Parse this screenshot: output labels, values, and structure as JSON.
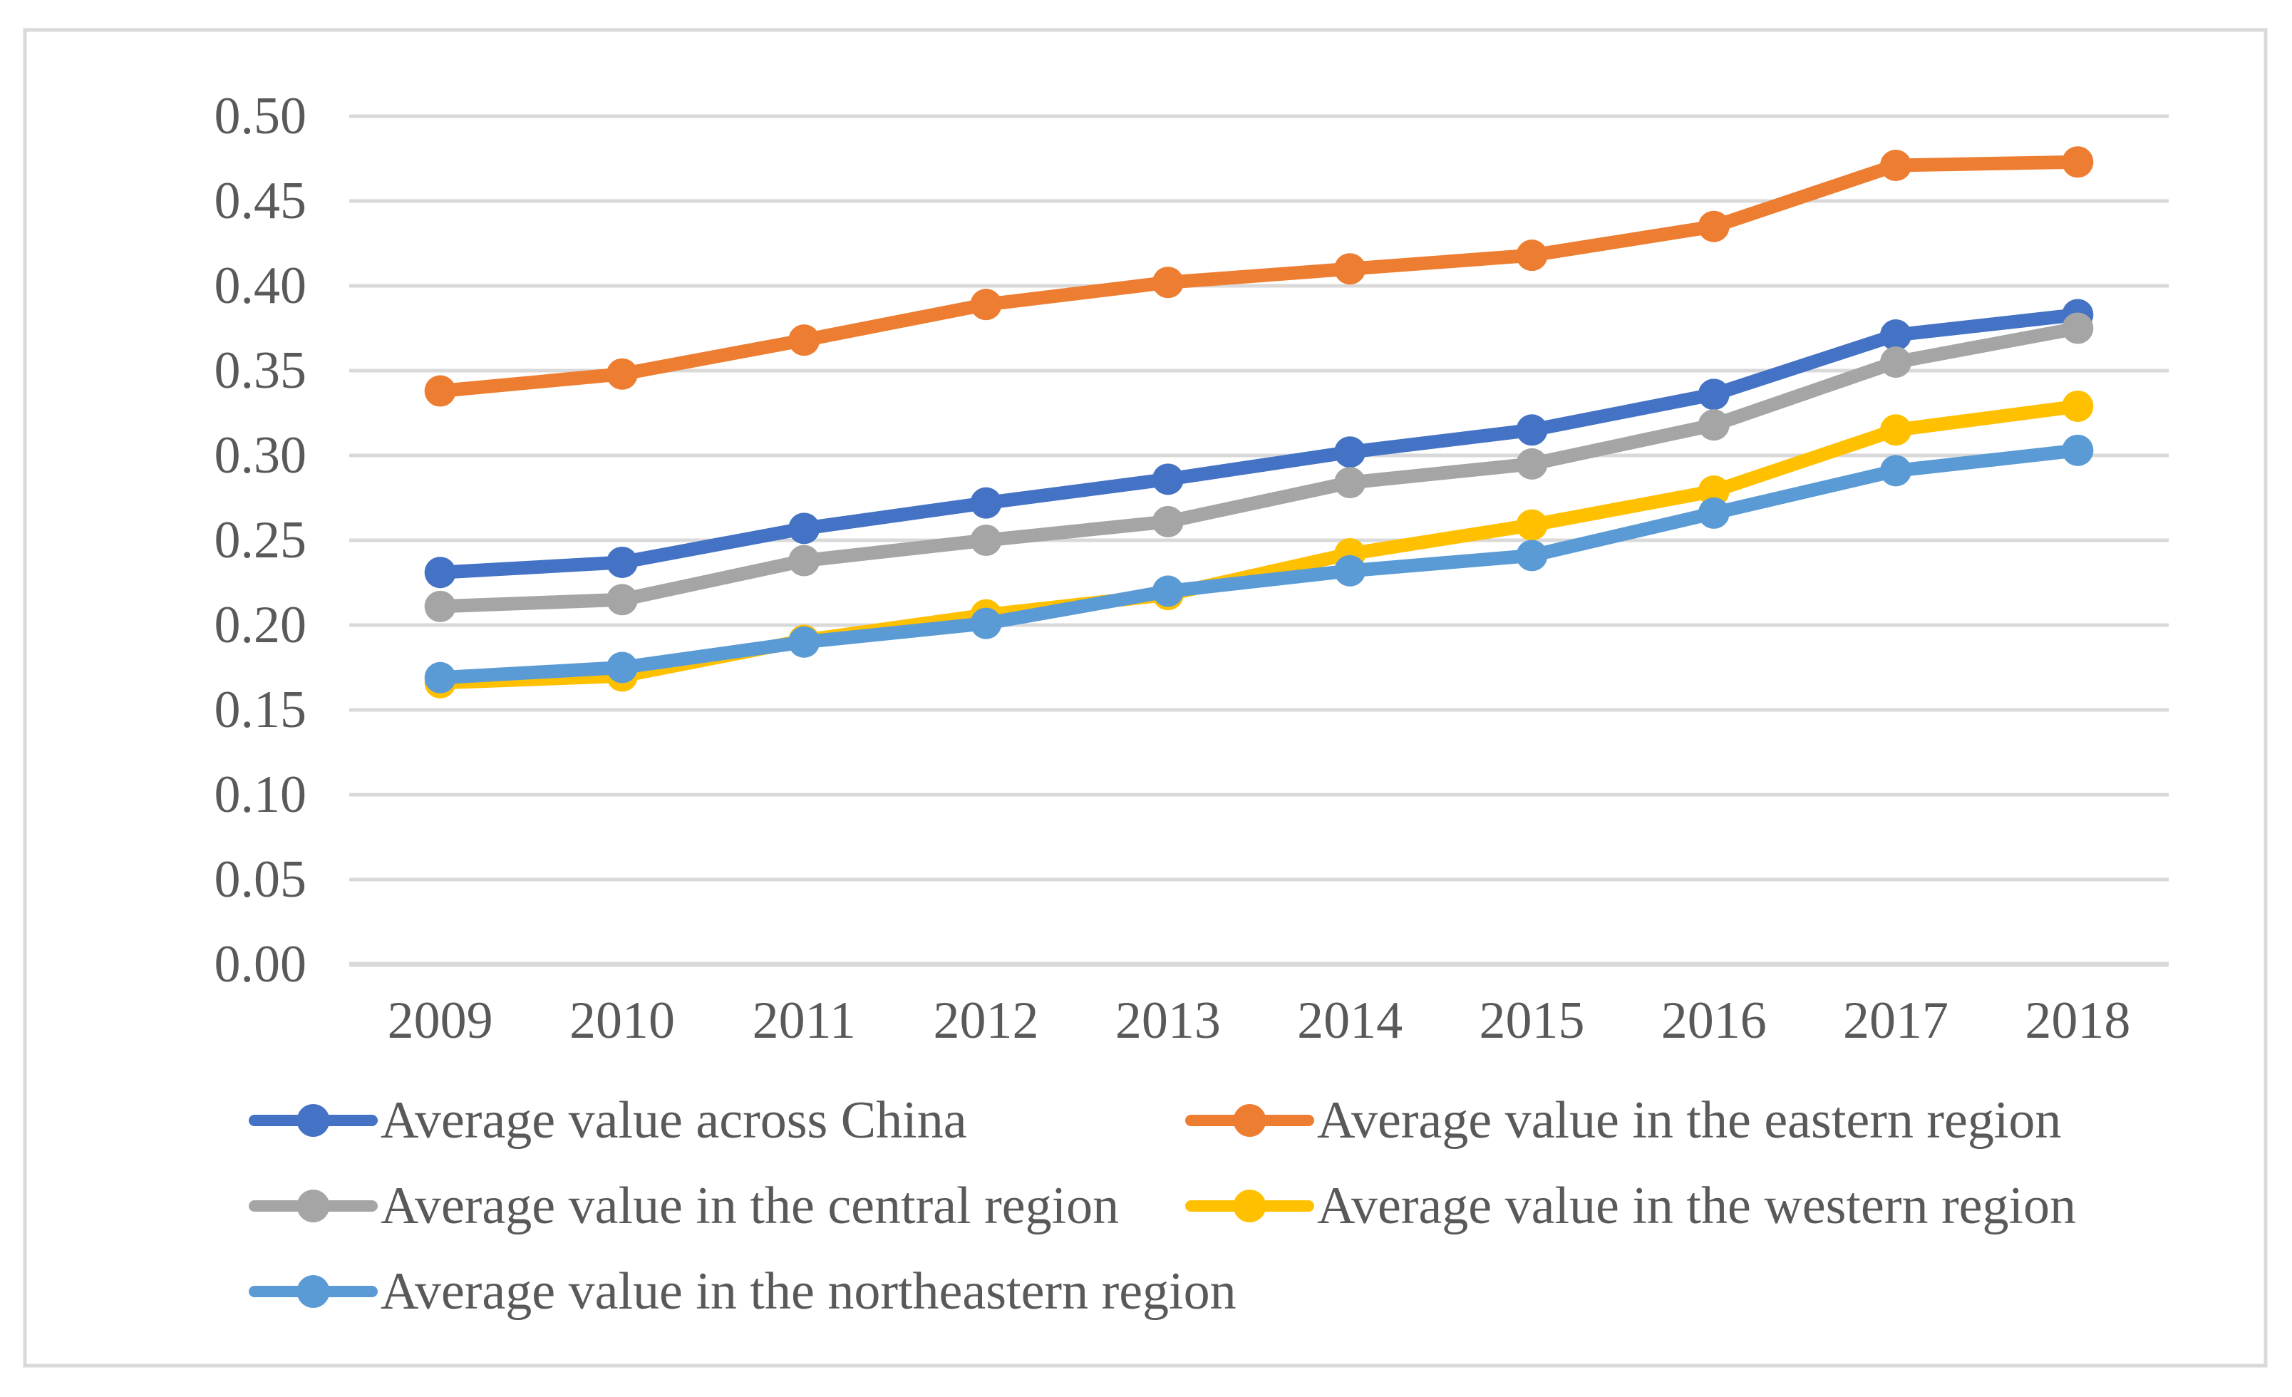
{
  "figure": {
    "background": "#FFFFFF",
    "border_color": "#D9D9D9"
  },
  "chart_data": {
    "type": "line",
    "title": "",
    "xlabel": "",
    "ylabel": "",
    "x": [
      "2009",
      "2010",
      "2011",
      "2012",
      "2013",
      "2014",
      "2015",
      "2016",
      "2017",
      "2018"
    ],
    "series": [
      {
        "name": "Average value across China",
        "color": "#4472C4",
        "values": [
          0.231,
          0.237,
          0.257,
          0.272,
          0.286,
          0.302,
          0.315,
          0.336,
          0.371,
          0.383
        ]
      },
      {
        "name": "Average value in the eastern region",
        "color": "#ED7D31",
        "values": [
          0.338,
          0.348,
          0.368,
          0.389,
          0.402,
          0.41,
          0.418,
          0.435,
          0.471,
          0.473
        ]
      },
      {
        "name": "Average value in the central region",
        "color": "#A5A5A5",
        "values": [
          0.211,
          0.215,
          0.238,
          0.25,
          0.261,
          0.284,
          0.295,
          0.318,
          0.355,
          0.375
        ]
      },
      {
        "name": "Average value in the western region",
        "color": "#FFC000",
        "values": [
          0.166,
          0.17,
          0.191,
          0.206,
          0.218,
          0.242,
          0.259,
          0.279,
          0.315,
          0.329
        ]
      },
      {
        "name": "Average value in the northeastern region",
        "color": "#5B9BD5",
        "values": [
          0.169,
          0.175,
          0.19,
          0.201,
          0.22,
          0.232,
          0.241,
          0.266,
          0.291,
          0.303
        ]
      }
    ],
    "ylim": [
      0,
      0.5
    ],
    "yticks": [
      0,
      0.05,
      0.1,
      0.15,
      0.2,
      0.25,
      0.3,
      0.35,
      0.4,
      0.45,
      0.5
    ],
    "ytick_labels": [
      "0.00",
      "0.05",
      "0.10",
      "0.15",
      "0.20",
      "0.25",
      "0.30",
      "0.35",
      "0.40",
      "0.45",
      "0.50"
    ],
    "grid": true,
    "gridline_color": "#D9D9D9",
    "axis_label_color": "#595959",
    "marker": "circle",
    "legend_position": "bottom"
  }
}
